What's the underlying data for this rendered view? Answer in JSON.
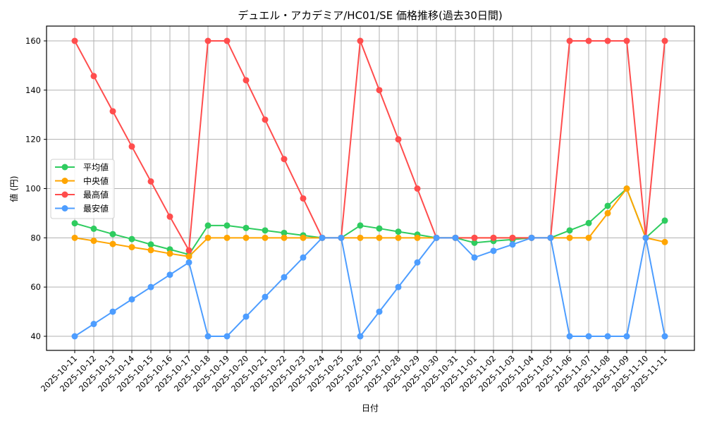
{
  "chart_data": {
    "type": "line",
    "title": "デュエル・アカデミア/HC01/SE 価格推移(過去30日間)",
    "xlabel": "日付",
    "ylabel": "値 (円)",
    "ylim": [
      34,
      166
    ],
    "yticks": [
      40,
      60,
      80,
      100,
      120,
      140,
      160
    ],
    "grid": true,
    "legend_position": "center left",
    "categories": [
      "2025-10-11",
      "2025-10-12",
      "2025-10-13",
      "2025-10-14",
      "2025-10-15",
      "2025-10-16",
      "2025-10-17",
      "2025-10-18",
      "2025-10-19",
      "2025-10-20",
      "2025-10-21",
      "2025-10-22",
      "2025-10-23",
      "2025-10-24",
      "2025-10-25",
      "2025-10-26",
      "2025-10-27",
      "2025-10-28",
      "2025-10-29",
      "2025-10-30",
      "2025-10-31",
      "2025-11-01",
      "2025-11-02",
      "2025-11-03",
      "2025-11-04",
      "2025-11-05",
      "2025-11-06",
      "2025-11-07",
      "2025-11-08",
      "2025-11-09",
      "2025-11-10",
      "2025-11-11"
    ],
    "series": [
      {
        "name": "平均値",
        "color": "#2ecc5f",
        "values": [
          85.9,
          83.7,
          81.5,
          79.5,
          77.3,
          75.3,
          73.2,
          85,
          85,
          84,
          83,
          82,
          81,
          80,
          80,
          85,
          83.8,
          82.5,
          81.3,
          80,
          80,
          78,
          78.7,
          79.3,
          80,
          80,
          83,
          86,
          93,
          100,
          80,
          87
        ]
      },
      {
        "name": "中央値",
        "color": "#ffa500",
        "values": [
          80,
          78.8,
          77.5,
          76.2,
          75,
          73.6,
          72.4,
          80,
          80,
          80,
          80,
          80,
          80,
          80,
          80,
          80,
          80,
          80,
          80,
          80,
          80,
          80,
          80,
          80,
          80,
          80,
          80,
          80,
          90,
          100,
          80,
          78.3
        ]
      },
      {
        "name": "最高値",
        "color": "#ff4d4d",
        "values": [
          160,
          145.7,
          131.4,
          117.1,
          102.9,
          88.6,
          74.9,
          160,
          160,
          144,
          128,
          112,
          96,
          80,
          80,
          160,
          140,
          120,
          100,
          80,
          80,
          80,
          80,
          80,
          80,
          80,
          160,
          160,
          160,
          160,
          80,
          160
        ]
      },
      {
        "name": "最安値",
        "color": "#4d9dff",
        "values": [
          40,
          45,
          50,
          55,
          60,
          65,
          70,
          40,
          40,
          48,
          56,
          64,
          72,
          80,
          80,
          40,
          50,
          60,
          70,
          80,
          80,
          72,
          74.7,
          77.3,
          80,
          80,
          40,
          40,
          40,
          40,
          80,
          40
        ]
      }
    ]
  }
}
